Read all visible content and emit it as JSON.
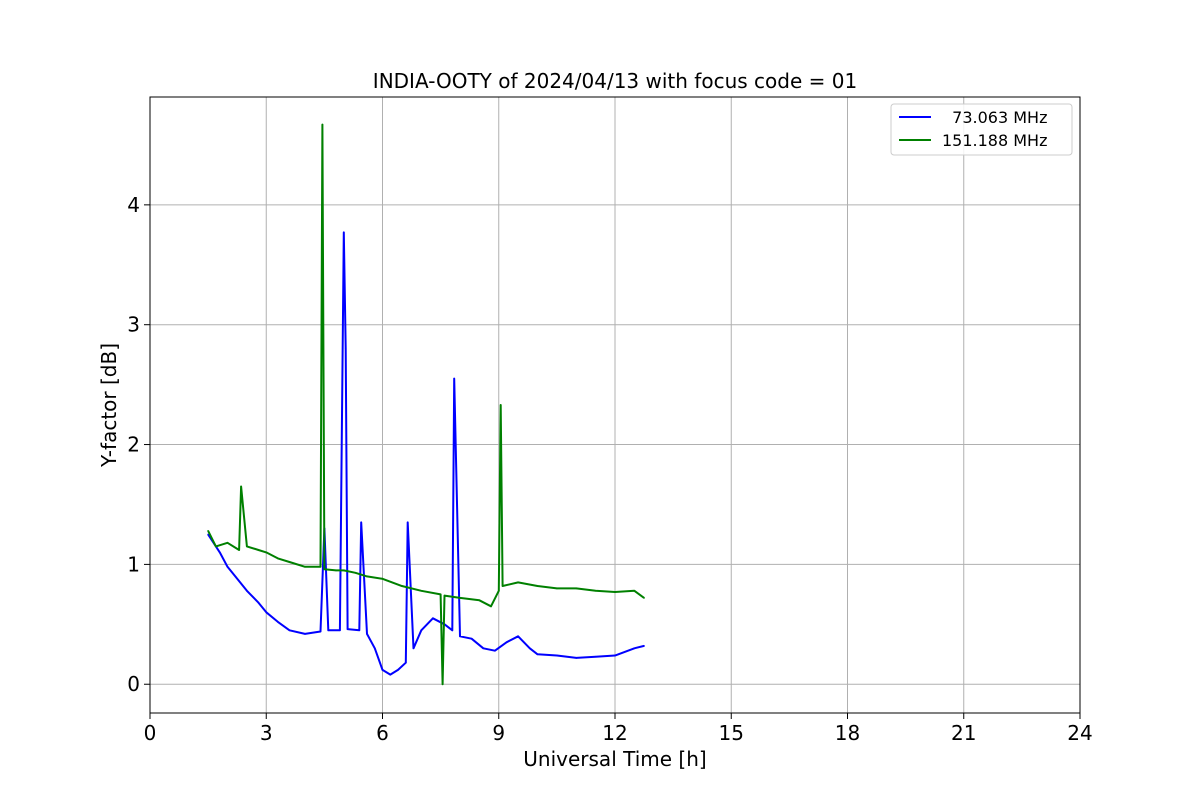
{
  "chart_data": {
    "type": "line",
    "title": "INDIA-OOTY of 2024/04/13 with focus code = 01",
    "xlabel": "Universal Time [h]",
    "ylabel": "Y-factor [dB]",
    "xlim": [
      0,
      24
    ],
    "ylim": [
      -0.24,
      4.9
    ],
    "xticks": [
      0,
      3,
      6,
      9,
      12,
      15,
      18,
      21,
      24
    ],
    "yticks": [
      0,
      1,
      2,
      3,
      4
    ],
    "grid": true,
    "legend_position": "top-right",
    "series": [
      {
        "name": "  73.063 MHz",
        "color": "#0000ff",
        "x": [
          1.5,
          1.8,
          2.0,
          2.2,
          2.5,
          2.8,
          3.0,
          3.3,
          3.6,
          4.0,
          4.4,
          4.5,
          4.6,
          4.9,
          5.0,
          5.05,
          5.1,
          5.4,
          5.45,
          5.6,
          5.8,
          6.0,
          6.2,
          6.4,
          6.6,
          6.65,
          6.8,
          7.0,
          7.3,
          7.6,
          7.8,
          7.85,
          8.0,
          8.3,
          8.6,
          8.9,
          9.2,
          9.5,
          9.8,
          10.0,
          10.5,
          11.0,
          11.5,
          12.0,
          12.5,
          12.75
        ],
        "y": [
          1.25,
          1.1,
          0.98,
          0.9,
          0.78,
          0.68,
          0.6,
          0.52,
          0.45,
          0.42,
          0.44,
          1.3,
          0.45,
          0.45,
          3.77,
          2.8,
          0.46,
          0.45,
          1.35,
          0.42,
          0.3,
          0.12,
          0.08,
          0.12,
          0.18,
          1.35,
          0.3,
          0.45,
          0.55,
          0.5,
          0.45,
          2.55,
          0.4,
          0.38,
          0.3,
          0.28,
          0.35,
          0.4,
          0.3,
          0.25,
          0.24,
          0.22,
          0.23,
          0.24,
          0.3,
          0.32
        ]
      },
      {
        "name": "151.188 MHz",
        "color": "#008000",
        "x": [
          1.5,
          1.7,
          2.0,
          2.3,
          2.35,
          2.5,
          2.8,
          3.0,
          3.3,
          3.6,
          4.0,
          4.4,
          4.45,
          4.5,
          4.8,
          5.0,
          5.3,
          5.6,
          6.0,
          6.5,
          7.0,
          7.5,
          7.55,
          7.6,
          8.0,
          8.5,
          8.8,
          9.0,
          9.05,
          9.1,
          9.5,
          10.0,
          10.5,
          11.0,
          11.5,
          12.0,
          12.5,
          12.75
        ],
        "y": [
          1.28,
          1.15,
          1.18,
          1.12,
          1.65,
          1.15,
          1.12,
          1.1,
          1.05,
          1.02,
          0.98,
          0.98,
          4.67,
          0.96,
          0.95,
          0.95,
          0.93,
          0.9,
          0.88,
          0.82,
          0.78,
          0.75,
          0.0,
          0.74,
          0.72,
          0.7,
          0.65,
          0.78,
          2.33,
          0.82,
          0.85,
          0.82,
          0.8,
          0.8,
          0.78,
          0.77,
          0.78,
          0.72
        ]
      }
    ]
  }
}
